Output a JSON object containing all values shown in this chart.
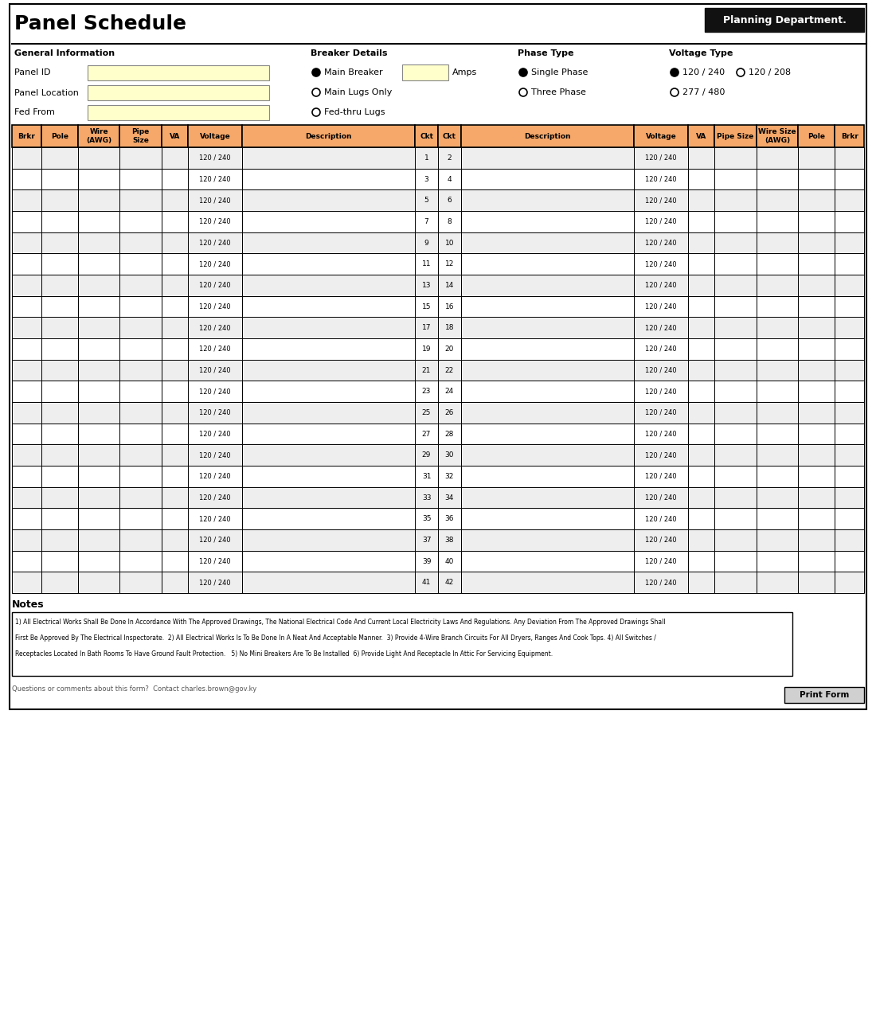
{
  "title": "Panel Schedule",
  "logo_text": "Planning Department.",
  "gen_info_label": "General Information",
  "gen_info_fields": [
    "Panel ID",
    "Panel Location",
    "Fed From"
  ],
  "breaker_label": "Breaker Details",
  "amps_label": "Amps",
  "phase_label": "Phase Type",
  "voltage_label": "Voltage Type",
  "left_headers": [
    "Brkr",
    "Pole",
    "Wire\n(AWG)",
    "Pipe\nSize",
    "VA",
    "Voltage",
    "Description",
    "Ckt",
    "Ckt"
  ],
  "left_col_ratios": [
    2.8,
    3.5,
    4.0,
    4.0,
    2.5,
    5.2,
    16.5,
    2.2,
    2.2
  ],
  "right_headers": [
    "Description",
    "Voltage",
    "VA",
    "Pipe Size",
    "Wire Size\n(AWG)",
    "Pole",
    "Brkr"
  ],
  "right_col_ratios": [
    16.5,
    5.2,
    2.5,
    4.0,
    4.0,
    3.5,
    2.8
  ],
  "num_rows": 21,
  "circuit_pairs": [
    [
      1,
      2
    ],
    [
      3,
      4
    ],
    [
      5,
      6
    ],
    [
      7,
      8
    ],
    [
      9,
      10
    ],
    [
      11,
      12
    ],
    [
      13,
      14
    ],
    [
      15,
      16
    ],
    [
      17,
      18
    ],
    [
      19,
      20
    ],
    [
      21,
      22
    ],
    [
      23,
      24
    ],
    [
      25,
      26
    ],
    [
      27,
      28
    ],
    [
      29,
      30
    ],
    [
      31,
      32
    ],
    [
      33,
      34
    ],
    [
      35,
      36
    ],
    [
      37,
      38
    ],
    [
      39,
      40
    ],
    [
      41,
      42
    ]
  ],
  "voltage_default": "120 / 240",
  "header_color": "#F5A86A",
  "row_odd": "#EEEEEE",
  "row_even": "#FFFFFF",
  "input_color": "#FFFFCC",
  "notes_text": "1) All Electrical Works Shall Be Done In Accordance With The Approved Drawings, The National Electrical Code And Current Local Electricity Laws And Regulations. Any Deviation From The Approved Drawings Shall\nFirst Be Approved By The Electrical Inspectorate.  2) All Electrical Works Is To Be Done In A Neat And Acceptable Manner.  3) Provide 4-Wire Branch Circuits For All Dryers, Ranges And Cook Tops. 4) All Switches /\nReceptacles Located In Bath Rooms To Have Ground Fault Protection.   5) No Mini Breakers Are To Be Installed  6) Provide Light And Receptacle In Attic For Servicing Equipment.",
  "footer_text": "Questions or comments about this form?  Contact charles.brown@gov.ky",
  "print_btn": "Print Form",
  "logo_bg": "#111111"
}
